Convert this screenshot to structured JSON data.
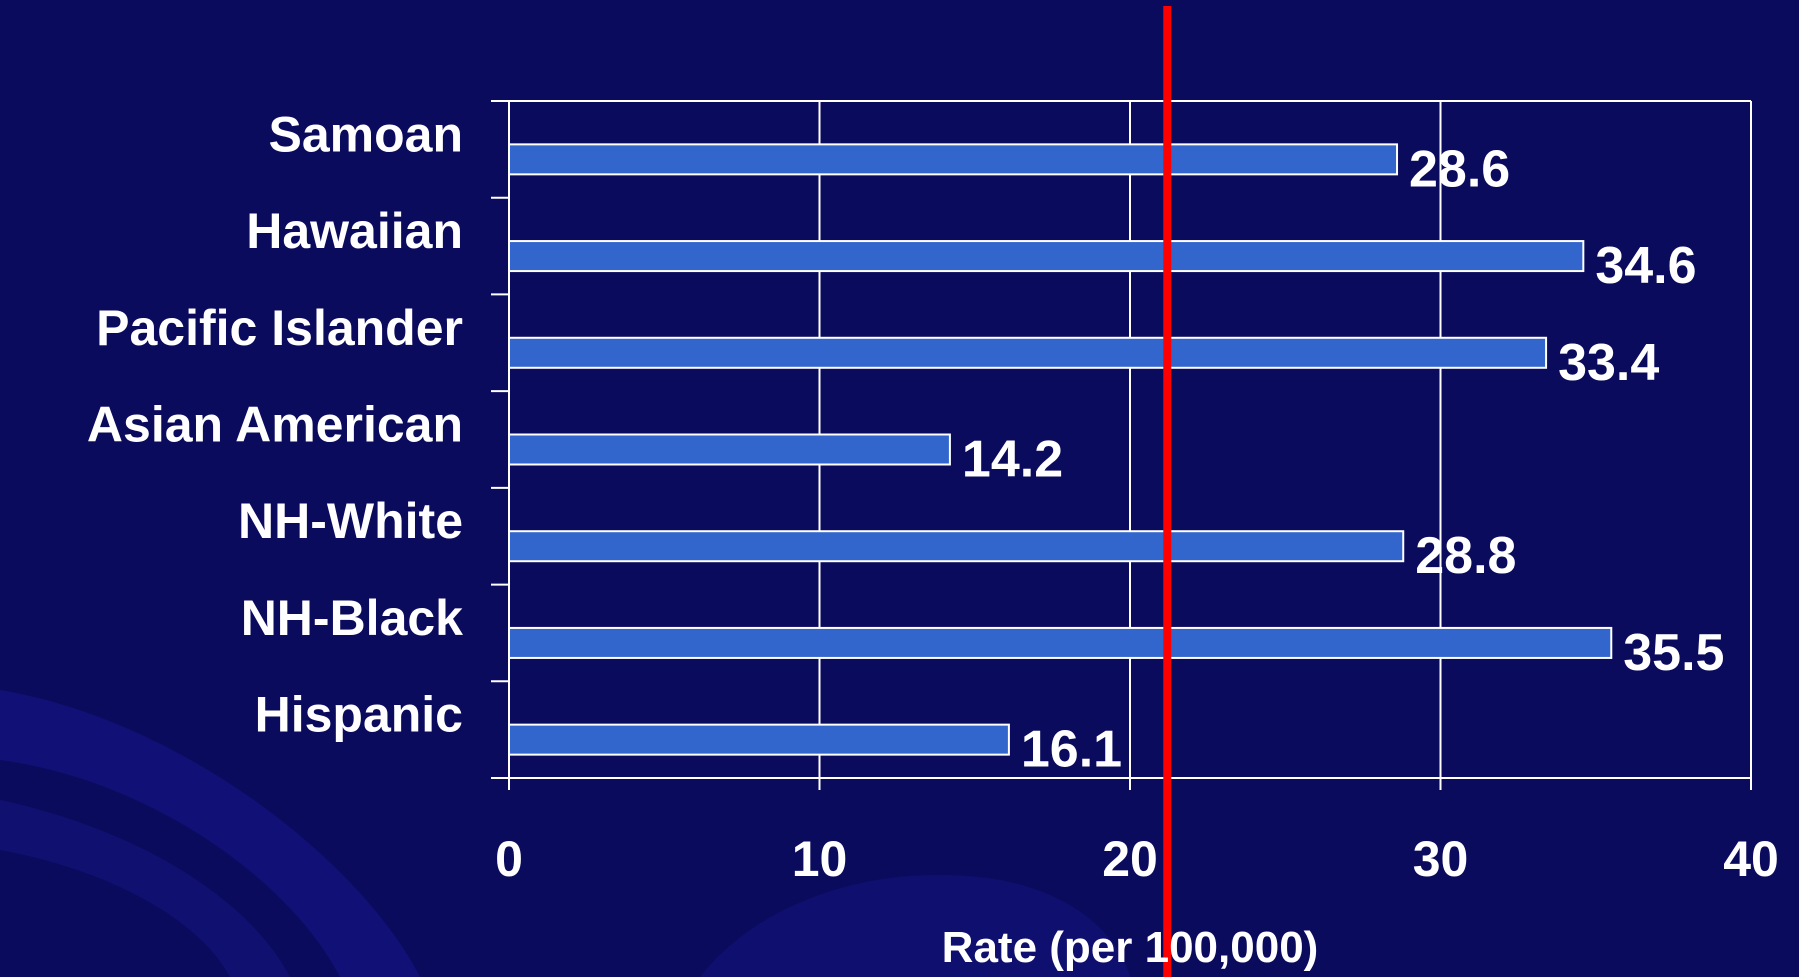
{
  "chart_data": {
    "type": "bar",
    "orientation": "horizontal",
    "categories": [
      "Samoan",
      "Hawaiian",
      "Pacific Islander",
      "Asian American",
      "NH-White",
      "NH-Black",
      "Hispanic"
    ],
    "values": [
      28.6,
      34.6,
      33.4,
      14.2,
      28.8,
      35.5,
      16.1
    ],
    "data_labels": [
      "28.6",
      "34.6",
      "33.4",
      "14.2",
      "28.8",
      "35.5",
      "16.1"
    ],
    "title": "",
    "xlabel": "Rate (per 100,000)",
    "ylabel": "",
    "xlim": [
      0,
      40
    ],
    "xticks": [
      0,
      10,
      20,
      30,
      40
    ],
    "xtick_labels": [
      "0",
      "10",
      "20",
      "30",
      "40"
    ],
    "reference_line": {
      "value": 21.2,
      "color": "#ff0000"
    },
    "grid": "vertical gridlines",
    "legend": "none",
    "colors": {
      "background": "#0b0b5e",
      "bar_fill": "#3366cc",
      "bar_stroke": "#ffffff",
      "gridline": "#ffffff",
      "text": "#ffffff",
      "reference_line": "#ff0000"
    }
  }
}
